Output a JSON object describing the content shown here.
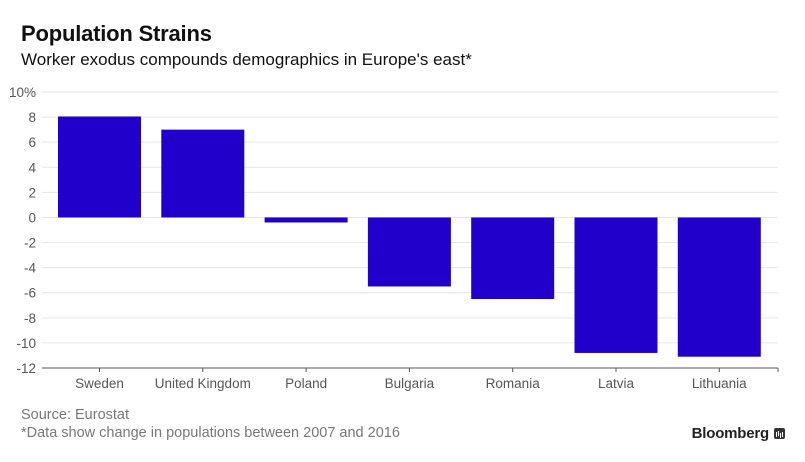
{
  "header": {
    "title": "Population Strains",
    "subtitle": "Worker exodus compounds demographics in Europe's east*"
  },
  "footer": {
    "source": "Source: Eurostat",
    "note": "*Data show change in populations between 2007 and 2016",
    "brand": "Bloomberg",
    "brand_icon": "bloomberg-chart-icon"
  },
  "colors": {
    "bar": "#2200cc",
    "grid": "#e6e6e6",
    "axis": "#555555"
  },
  "chart_data": {
    "type": "bar",
    "title": "Population Strains",
    "subtitle": "Worker exodus compounds demographics in Europe's east*",
    "xlabel": "",
    "ylabel": "",
    "categories": [
      "Sweden",
      "United Kingdom",
      "Poland",
      "Bulgaria",
      "Romania",
      "Latvia",
      "Lithuania"
    ],
    "values": [
      8.05,
      7.0,
      -0.4,
      -5.5,
      -6.5,
      -10.8,
      -11.1
    ],
    "unit": "%",
    "ylim": [
      -12,
      10
    ],
    "yticks": [
      10,
      8,
      6,
      4,
      2,
      0,
      -2,
      -4,
      -6,
      -8,
      -10,
      -12
    ],
    "ytick_labels": [
      "10%",
      "8",
      "6",
      "4",
      "2",
      "0",
      "-2",
      "-4",
      "-6",
      "-8",
      "-10",
      "-12"
    ],
    "grid": true,
    "legend": "none"
  }
}
